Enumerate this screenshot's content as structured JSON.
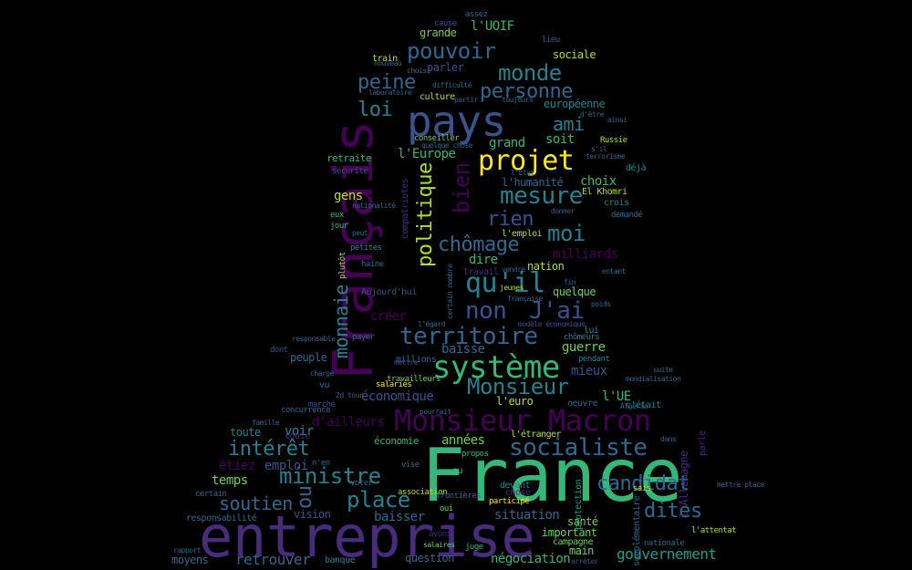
{
  "palette": {
    "purple": "#440154",
    "indigo": "#472c7a",
    "blue": "#3b528b",
    "steel": "#31688e",
    "teal": "#26828e",
    "green": "#1f9e89",
    "mint": "#35b779",
    "lime": "#6ece58",
    "yellow": "#b5de2b",
    "bright": "#fde725"
  },
  "words": [
    "France",
    "entreprise",
    "Français",
    "pays",
    "Monsieur Macron",
    "système",
    "projet",
    "qu'il",
    "non",
    "J'ai",
    "territoire",
    "socialiste",
    "Monsieur",
    "mesure",
    "pouvoir",
    "monde",
    "personne",
    "peine",
    "loi",
    "ami",
    "politique",
    "bien",
    "rien",
    "moi",
    "chômage",
    "intérêt",
    "ministre",
    "place",
    "soutien",
    "ou",
    "candidat",
    "dites",
    "gouvernement",
    "monnaie",
    "l'UOIF",
    "l'Europe",
    "dire",
    "l'UE",
    "grand",
    "soit",
    "choix",
    "retraite",
    "gens",
    "années",
    "temps",
    "économie",
    "économique",
    "baisser",
    "situation",
    "d'ailleurs",
    "voir",
    "toute",
    "guerre",
    "mieux",
    "baisse",
    "peuple",
    "question",
    "retrouver",
    "moyens",
    "main",
    "négociation",
    "santé",
    "important",
    "vision",
    "créer",
    "quelque",
    "nation",
    "milliards",
    "travail",
    "train",
    "sociale",
    "grande",
    "parler",
    "culture",
    "européenne",
    "conseiller",
    "l'humanité",
    "Russie",
    "déjà",
    "El Khomri",
    "crois",
    "demandé",
    "l'emploi",
    "l'euro",
    "oeuvre",
    "c'était",
    "l'étranger",
    "eu",
    "propos",
    "juge",
    "oui",
    "devant",
    "chose",
    "participé",
    "protection",
    "sais",
    "l'attentat",
    "nationale",
    "campagne",
    "banque",
    "vu",
    "concurrence",
    "marché",
    "toute",
    "emploi",
    "étiez",
    "certain",
    "responsabilité",
    "jour",
    "eux",
    "plutôt",
    "haine",
    "petites",
    "compatriotes",
    "payer",
    "dont",
    "millions",
    "travailleurs",
    "salariés",
    "chômeurs",
    "pendant",
    "lui",
    "Aujourd'hui",
    "sécurité",
    "l'Allemagne",
    "supplémentaire",
    "parle",
    "cause",
    "assez",
    "lieu",
    "difficulté",
    "laboratoire",
    "nouveau",
    "choisi",
    "toujours",
    "partir",
    "fin",
    "jeunes",
    "entant",
    "poids",
    "l'égard",
    "modèle économique",
    "certain nombre",
    "française",
    "vendre",
    "donner",
    "terrorisme",
    "Algérie",
    "ainsi",
    "d'être",
    "s'il",
    "quelque chose",
    "n'en",
    "vise",
    "voter",
    "association",
    "frontières",
    "pourrait",
    "mettre",
    "avons",
    "salaires",
    "arrêter",
    "rapport",
    "charge",
    "famille",
    "2d tour",
    "responsable",
    "suite",
    "mondialisation",
    "mettre place",
    "dans",
    "l'Etat",
    "nationalité",
    "peut"
  ]
}
